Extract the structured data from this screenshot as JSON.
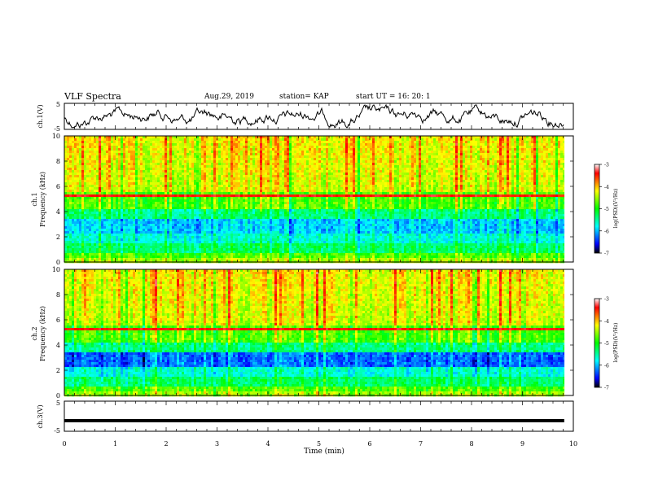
{
  "header": {
    "title": "VLF Spectra",
    "date": "Aug.29, 2019",
    "station": "station= KAP",
    "start": "start UT = 16: 20: 1"
  },
  "chart_data": [
    {
      "type": "line",
      "name": "ch1-waveform",
      "ylabel": "ch.1(V)",
      "ylim": [
        -5,
        5
      ],
      "yticks": [
        "5",
        "-5"
      ],
      "xlim": [
        0,
        10
      ],
      "x_extent": 9.82
    },
    {
      "type": "heatmap",
      "name": "ch1-spectrogram",
      "ylabel_1": "ch.1",
      "ylabel_2": "Frequency (kHz)",
      "ylim": [
        0,
        10
      ],
      "yticks": [
        "0",
        "2",
        "4",
        "6",
        "8",
        "10"
      ],
      "xlim": [
        0,
        10
      ],
      "x_extent": 9.82,
      "colorbar": {
        "label": "log(PSD)(V²/Hz)",
        "range": [
          -7,
          -3
        ],
        "ticks": [
          "-3",
          "-4",
          "-5",
          "-6",
          "-7"
        ],
        "colors": [
          "#000000",
          "#0000ff",
          "#00ffff",
          "#00ff00",
          "#ffff00",
          "#ff0000",
          "#ffffff"
        ]
      }
    },
    {
      "type": "heatmap",
      "name": "ch2-spectrogram",
      "ylabel_1": "ch.2",
      "ylabel_2": "Frequency (kHz)",
      "ylim": [
        0,
        10
      ],
      "yticks": [
        "0",
        "2",
        "4",
        "6",
        "8",
        "10"
      ],
      "xlim": [
        0,
        10
      ],
      "x_extent": 9.82,
      "colorbar": {
        "label": "log(PSD)(V²/Hz)",
        "range": [
          -7,
          -3
        ],
        "ticks": [
          "-3",
          "-4",
          "-5",
          "-6",
          "-7"
        ],
        "colors": [
          "#000000",
          "#0000ff",
          "#00ffff",
          "#00ff00",
          "#ffff00",
          "#ff0000",
          "#ffffff"
        ]
      }
    },
    {
      "type": "line",
      "name": "ch3-waveform",
      "ylabel": "ch.3(V)",
      "ylim": [
        -5,
        5
      ],
      "yticks": [
        "5",
        "-5"
      ],
      "xlim": [
        0,
        10
      ],
      "x_extent": 9.82,
      "level": -1.5
    }
  ],
  "xaxis": {
    "label": "Time (min)",
    "ticks": [
      "0",
      "1",
      "2",
      "3",
      "4",
      "5",
      "6",
      "7",
      "8",
      "9",
      "10"
    ]
  }
}
